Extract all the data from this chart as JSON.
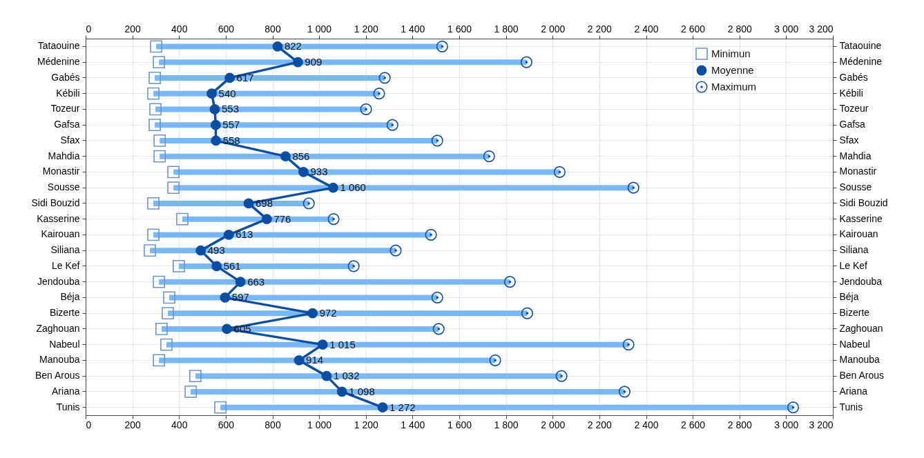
{
  "chart_data": {
    "type": "bar",
    "orientation": "horizontal",
    "categories": [
      "Tataouine",
      "Médenine",
      "Gabés",
      "Kébili",
      "Tozeur",
      "Gafsa",
      "Sfax",
      "Mahdia",
      "Monastir",
      "Sousse",
      "Sidi Bouzid",
      "Kasserine",
      "Kairouan",
      "Siliana",
      "Le Kef",
      "Jendouba",
      "Béja",
      "Bizerte",
      "Zaghouan",
      "Nabeul",
      "Manouba",
      "Ben Arous",
      "Ariana",
      "Tunis"
    ],
    "series": [
      {
        "color": "#7ab8f5",
        "base": [
          302,
          314,
          296,
          290,
          299,
          296,
          317,
          317,
          376,
          376,
          290,
          414,
          290,
          275,
          399,
          314,
          358,
          352,
          325,
          346,
          314,
          470,
          450,
          577
        ],
        "values": [
          1225,
          1574,
          985,
          967,
          902,
          1018,
          1189,
          1411,
          1654,
          1970,
          666,
          648,
          1189,
          1053,
          749,
          1503,
          1148,
          1539,
          1187,
          1979,
          1440,
          1568,
          1858,
          2453
        ]
      },
      {
        "type": "scatter",
        "name": "Minimun",
        "color": "#6f93c4",
        "marker": "square",
        "values": [
          302,
          314,
          296,
          290,
          299,
          296,
          317,
          317,
          376,
          376,
          290,
          414,
          290,
          275,
          399,
          314,
          358,
          352,
          325,
          346,
          314,
          470,
          450,
          577
        ]
      },
      {
        "type": "line",
        "name": "Moyenne",
        "color": "#0b4ea2",
        "marker": "circle",
        "values": [
          822,
          909,
          617,
          540,
          553,
          557,
          558,
          856,
          933,
          1060,
          698,
          776,
          613,
          493,
          561,
          663,
          597,
          972,
          605,
          1015,
          914,
          1032,
          1098,
          1272
        ],
        "value_labels": [
          "822",
          "909",
          "617",
          "540",
          "553",
          "557",
          "558",
          "856",
          "933",
          "1 060",
          "698",
          "776",
          "613",
          "493",
          "561",
          "663",
          "597",
          "972",
          "605",
          "1 015",
          "914",
          "1 032",
          "1 098",
          "1 272"
        ]
      },
      {
        "type": "scatter",
        "name": "Maximum",
        "color": "#1a4f95",
        "marker": "circle",
        "values": [
          1527,
          1888,
          1281,
          1257,
          1201,
          1314,
          1506,
          1728,
          2030,
          2346,
          956,
          1062,
          1479,
          1328,
          1148,
          1817,
          1506,
          1891,
          1512,
          2325,
          1754,
          2038,
          2308,
          3030
        ]
      }
    ],
    "xlim": [
      0,
      3200
    ],
    "xticks": [
      0,
      200,
      400,
      600,
      800,
      {
        "value": 1000,
        "label": "1 000"
      },
      {
        "value": 1200,
        "label": "1 200"
      },
      {
        "value": 1400,
        "label": "1 400"
      },
      {
        "value": 1600,
        "label": "1 600"
      },
      {
        "value": 1800,
        "label": "1 800"
      },
      {
        "value": 2000,
        "label": "2 000"
      },
      {
        "value": 2200,
        "label": "2 200"
      },
      {
        "value": 2400,
        "label": "2 400"
      },
      {
        "value": 2600,
        "label": "2 600"
      },
      {
        "value": 2800,
        "label": "2 800"
      },
      {
        "value": 3000,
        "label": "3 000"
      },
      {
        "value": 3200,
        "label": "3 200"
      }
    ],
    "x2lim": [
      0,
      3200
    ],
    "x2ticks": [
      0,
      200,
      400,
      600,
      800,
      {
        "value": 1000,
        "label": "1 000"
      },
      {
        "value": 1200,
        "label": "1 200"
      },
      {
        "value": 1400,
        "label": "1 400"
      },
      {
        "value": 1600,
        "label": "1 600"
      },
      {
        "value": 1800,
        "label": "1 800"
      },
      {
        "value": 2000,
        "label": "2 000"
      },
      {
        "value": 2200,
        "label": "2 200"
      },
      {
        "value": 2400,
        "label": "2 400"
      },
      {
        "value": 2600,
        "label": "2 600"
      },
      {
        "value": 2800,
        "label": "2 800"
      },
      {
        "value": 3000,
        "label": "3 000"
      },
      {
        "value": 3200,
        "label": "3 200"
      }
    ],
    "grid": true,
    "legend": "top right"
  }
}
